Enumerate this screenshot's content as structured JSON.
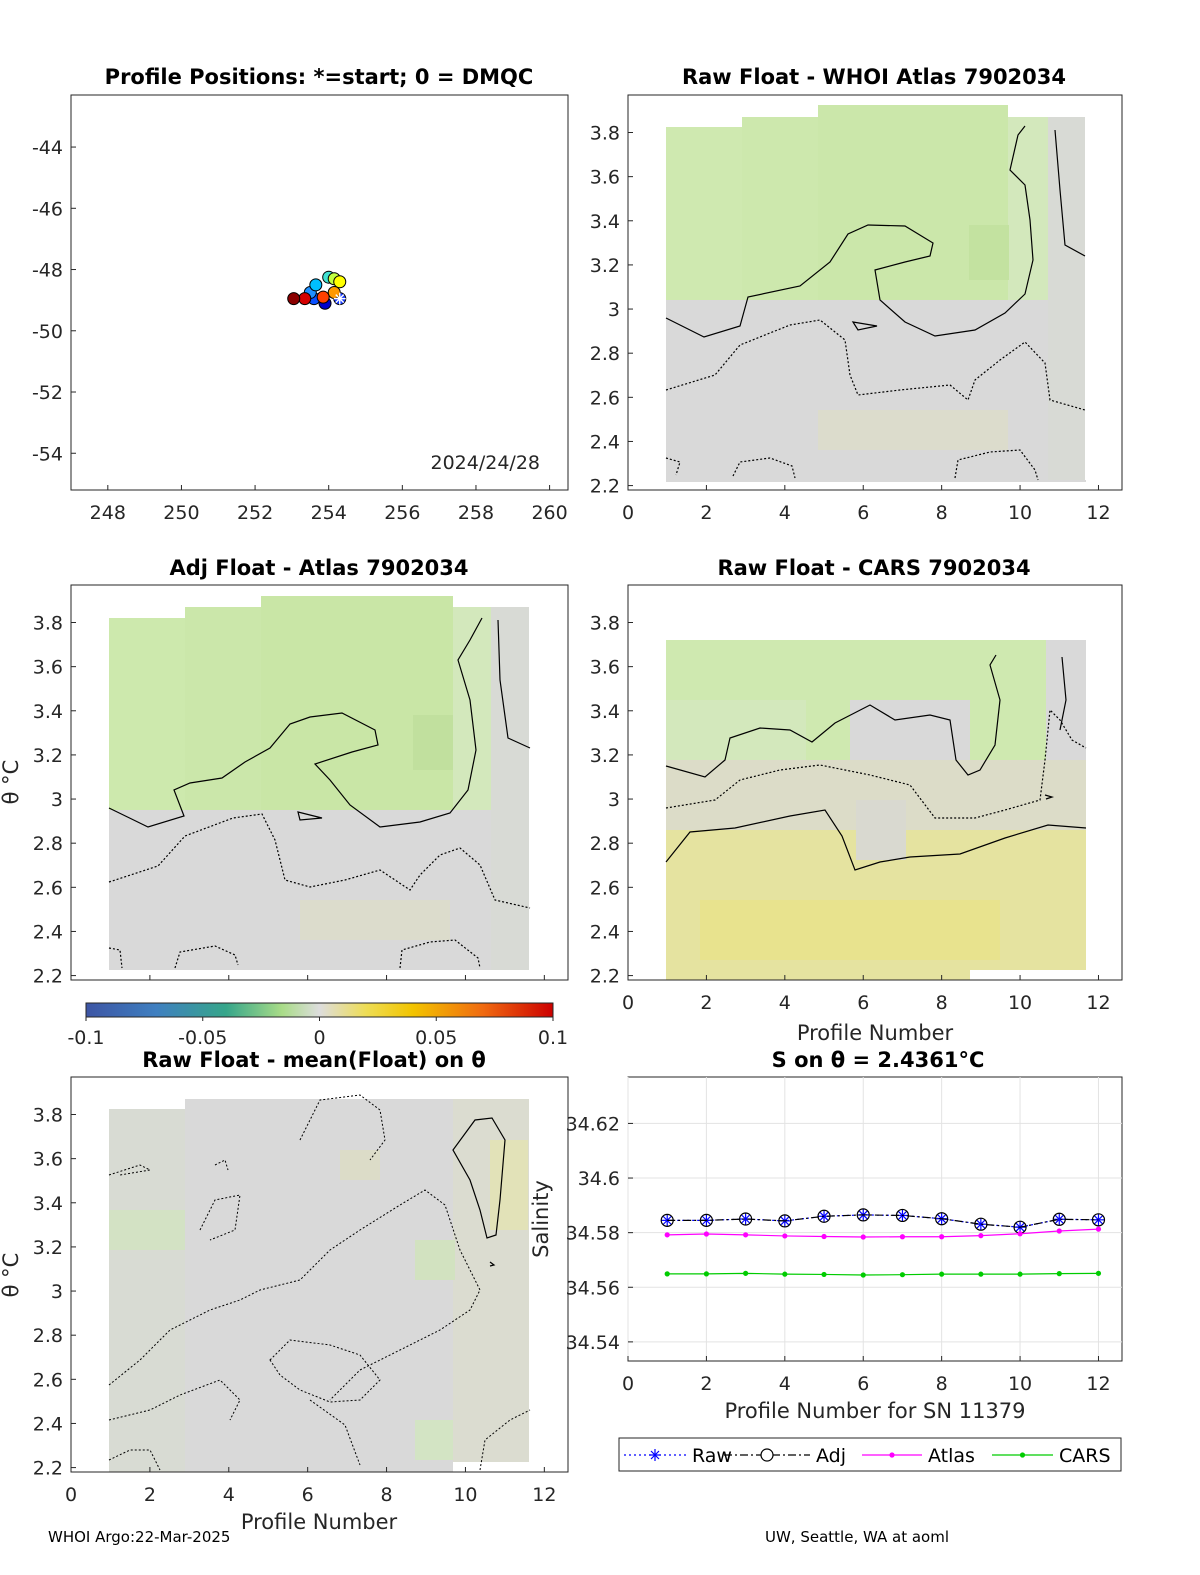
{
  "footer": {
    "left": "WHOI Argo:22-Mar-2025",
    "right": "UW, Seattle, WA at aoml"
  },
  "chart_data": [
    {
      "id": "positions",
      "type": "scatter",
      "title": "Profile Positions: *=start; 0 = DMQC",
      "xlim": [
        247,
        260.5
      ],
      "ylim": [
        -55.2,
        -42.3
      ],
      "xticks": [
        "248",
        "250",
        "252",
        "254",
        "256",
        "258",
        "260"
      ],
      "yticks": [
        "-54",
        "-52",
        "-50",
        "-48",
        "-46",
        "-44"
      ],
      "annotation": "2024/24/28",
      "start_marker": "asterisk",
      "points": [
        {
          "lon": 254.3,
          "lat": -48.95,
          "color": "#1a3cff"
        },
        {
          "lon": 253.9,
          "lat": -49.1,
          "color": "#0000cc"
        },
        {
          "lon": 253.6,
          "lat": -48.95,
          "color": "#0a50ff"
        },
        {
          "lon": 253.5,
          "lat": -48.75,
          "color": "#1e90ff"
        },
        {
          "lon": 253.65,
          "lat": -48.5,
          "color": "#00bfff"
        },
        {
          "lon": 254.0,
          "lat": -48.25,
          "color": "#40e0d0"
        },
        {
          "lon": 254.15,
          "lat": -48.3,
          "color": "#c0ff40"
        },
        {
          "lon": 254.3,
          "lat": -48.4,
          "color": "#ffff00"
        },
        {
          "lon": 254.15,
          "lat": -48.75,
          "color": "#ff9900"
        },
        {
          "lon": 253.85,
          "lat": -48.9,
          "color": "#ff4000"
        },
        {
          "lon": 253.35,
          "lat": -48.95,
          "color": "#d40000"
        },
        {
          "lon": 253.05,
          "lat": -48.95,
          "color": "#8b0000"
        }
      ]
    },
    {
      "id": "raw-whoi",
      "type": "heatmap",
      "title": "Raw Float - WHOI Atlas  7902034",
      "xlim": [
        0,
        12.6
      ],
      "ylim": [
        2.18,
        3.97
      ],
      "xticks": [
        "0",
        "2",
        "4",
        "6",
        "8",
        "10",
        "12"
      ],
      "yticks": [
        "2.2",
        "2.4",
        "2.6",
        "2.8",
        "3",
        "3.2",
        "3.4",
        "3.6",
        "3.8"
      ],
      "ylabel": "",
      "xlabel": ""
    },
    {
      "id": "adj-atlas",
      "type": "heatmap",
      "title": "Adj Float - Atlas  7902034",
      "xlim": [
        0,
        12.6
      ],
      "ylim": [
        2.18,
        3.97
      ],
      "xticks": [],
      "yticks": [
        "2.2",
        "2.4",
        "2.6",
        "2.8",
        "3",
        "3.2",
        "3.4",
        "3.6",
        "3.8"
      ],
      "ylabel": "θ °C"
    },
    {
      "id": "raw-cars",
      "type": "heatmap",
      "title": "Raw Float - CARS  7902034",
      "xlim": [
        0,
        12.6
      ],
      "ylim": [
        2.18,
        3.97
      ],
      "xticks": [
        "0",
        "2",
        "4",
        "6",
        "8",
        "10",
        "12"
      ],
      "yticks": [
        "2.2",
        "2.4",
        "2.6",
        "2.8",
        "3",
        "3.2",
        "3.4",
        "3.6",
        "3.8"
      ],
      "xlabel": "Profile Number"
    },
    {
      "id": "colorbar",
      "type": "colorbar",
      "range": [
        -0.1,
        0.1
      ],
      "ticks": [
        "-0.1",
        "-0.05",
        "0",
        "0.05",
        "0.1"
      ]
    },
    {
      "id": "raw-mean",
      "type": "heatmap",
      "title": "Raw Float - mean(Float) on θ",
      "xlim": [
        0,
        12.6
      ],
      "ylim": [
        2.18,
        3.97
      ],
      "xticks": [
        "0",
        "2",
        "4",
        "6",
        "8",
        "10",
        "12"
      ],
      "yticks": [
        "2.2",
        "2.4",
        "2.6",
        "2.8",
        "3",
        "3.2",
        "3.4",
        "3.6",
        "3.8"
      ],
      "ylabel": "θ °C",
      "xlabel": "Profile Number"
    },
    {
      "id": "salinity",
      "type": "line",
      "title": "S on θ = 2.4361°C",
      "xlabel": "Profile Number for SN 11379",
      "ylabel": "Salinity",
      "xlim": [
        0,
        12.6
      ],
      "ylim": [
        34.533,
        34.637
      ],
      "xticks": [
        "0",
        "2",
        "4",
        "6",
        "8",
        "10",
        "12"
      ],
      "yticks": [
        "34.54",
        "34.56",
        "34.58",
        "34.6",
        "34.62"
      ],
      "grid": true,
      "legend_position": "bottom",
      "x": [
        1,
        2,
        3,
        4,
        5,
        6,
        7,
        8,
        9,
        10,
        11,
        12
      ],
      "series": [
        {
          "name": "Raw",
          "color": "#0000ff",
          "values": [
            34.5845,
            34.5845,
            34.585,
            34.5843,
            34.586,
            34.5865,
            34.5863,
            34.5851,
            34.5831,
            34.582,
            34.5849,
            34.5847
          ]
        },
        {
          "name": "Adj",
          "color": "#000000",
          "values": [
            34.5845,
            34.5845,
            34.585,
            34.5843,
            34.586,
            34.5865,
            34.5863,
            34.5851,
            34.5831,
            34.582,
            34.5849,
            34.5847
          ]
        },
        {
          "name": "Atlas",
          "color": "#ff00ff",
          "values": [
            34.5792,
            34.5795,
            34.5792,
            34.5788,
            34.5786,
            34.5784,
            34.5785,
            34.5785,
            34.5789,
            34.5796,
            34.5806,
            34.5813
          ]
        },
        {
          "name": "CARS",
          "color": "#00cc00",
          "values": [
            34.5649,
            34.5649,
            34.5651,
            34.5648,
            34.5647,
            34.5645,
            34.5646,
            34.5648,
            34.5648,
            34.5648,
            34.565,
            34.5651
          ]
        }
      ]
    }
  ]
}
